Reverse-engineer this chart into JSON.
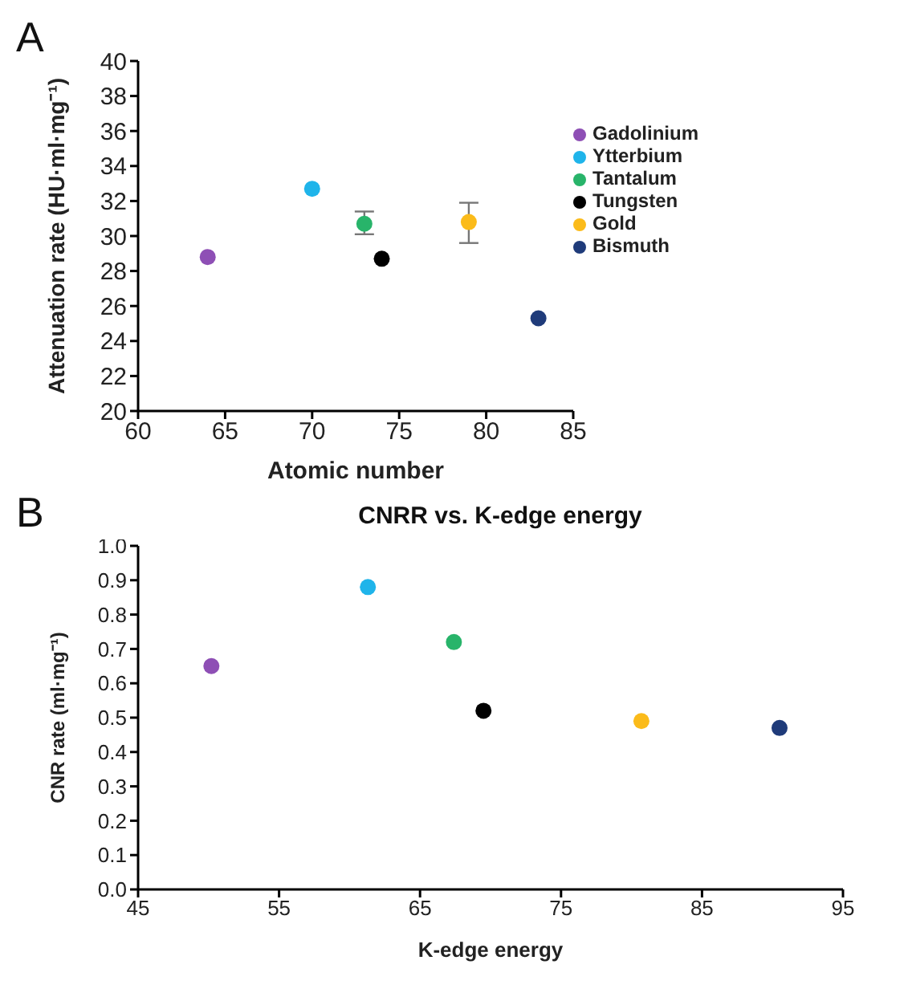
{
  "chart_data": [
    {
      "type": "scatter",
      "annotations": [
        "A"
      ],
      "xlabel": "Atomic number",
      "ylabel": "Attenuation rate (HU·ml·mg⁻¹)",
      "xlim": [
        60,
        85
      ],
      "xticks": [
        60,
        65,
        70,
        75,
        80,
        85
      ],
      "ylim": [
        20,
        40
      ],
      "yticks": [
        20,
        22,
        24,
        26,
        28,
        30,
        32,
        34,
        36,
        38,
        40
      ],
      "legend": "right",
      "marker": "circle",
      "series": [
        {
          "name": "Gadolinium",
          "color": "#8e4fb5",
          "x": [
            64
          ],
          "values": [
            28.8
          ]
        },
        {
          "name": "Ytterbium",
          "color": "#1fb4ea",
          "x": [
            70
          ],
          "values": [
            32.7
          ]
        },
        {
          "name": "Tantalum",
          "color": "#28b46a",
          "x": [
            73
          ],
          "values": [
            30.7
          ],
          "errors": [
            [
              30.1,
              31.4
            ]
          ]
        },
        {
          "name": "Tungsten",
          "color": "#000000",
          "x": [
            74
          ],
          "values": [
            28.7
          ]
        },
        {
          "name": "Gold",
          "color": "#fbbb1a",
          "x": [
            79
          ],
          "values": [
            30.8
          ],
          "errors": [
            [
              29.6,
              31.9
            ]
          ]
        },
        {
          "name": "Bismuth",
          "color": "#1f3b7a",
          "x": [
            83
          ],
          "values": [
            25.3
          ]
        }
      ]
    },
    {
      "type": "scatter",
      "annotations": [
        "B"
      ],
      "title": "CNRR vs. K-edge energy",
      "xlabel": "K-edge energy",
      "ylabel": "CNR rate (ml·mg⁻¹)",
      "xlim": [
        45,
        95
      ],
      "xticks": [
        45,
        55,
        65,
        75,
        85,
        95
      ],
      "ylim": [
        0,
        1
      ],
      "yticks": [
        {
          "value": 0,
          "label": "0.0"
        },
        0.1,
        0.2,
        0.3,
        0.4,
        0.5,
        0.6,
        0.7,
        0.8,
        0.9,
        {
          "value": 1,
          "label": "1.0"
        }
      ],
      "marker": "circle",
      "series": [
        {
          "color": "#8e4fb5",
          "x": [
            50.2
          ],
          "values": [
            0.65
          ]
        },
        {
          "color": "#1fb4ea",
          "x": [
            61.3
          ],
          "values": [
            0.88
          ]
        },
        {
          "color": "#28b46a",
          "x": [
            67.4
          ],
          "values": [
            0.72
          ]
        },
        {
          "color": "#000000",
          "x": [
            69.5
          ],
          "values": [
            0.52
          ]
        },
        {
          "color": "#fbbb1a",
          "x": [
            80.7
          ],
          "values": [
            0.49
          ]
        },
        {
          "color": "#1f3b7a",
          "x": [
            90.5
          ],
          "values": [
            0.47
          ]
        }
      ]
    }
  ]
}
